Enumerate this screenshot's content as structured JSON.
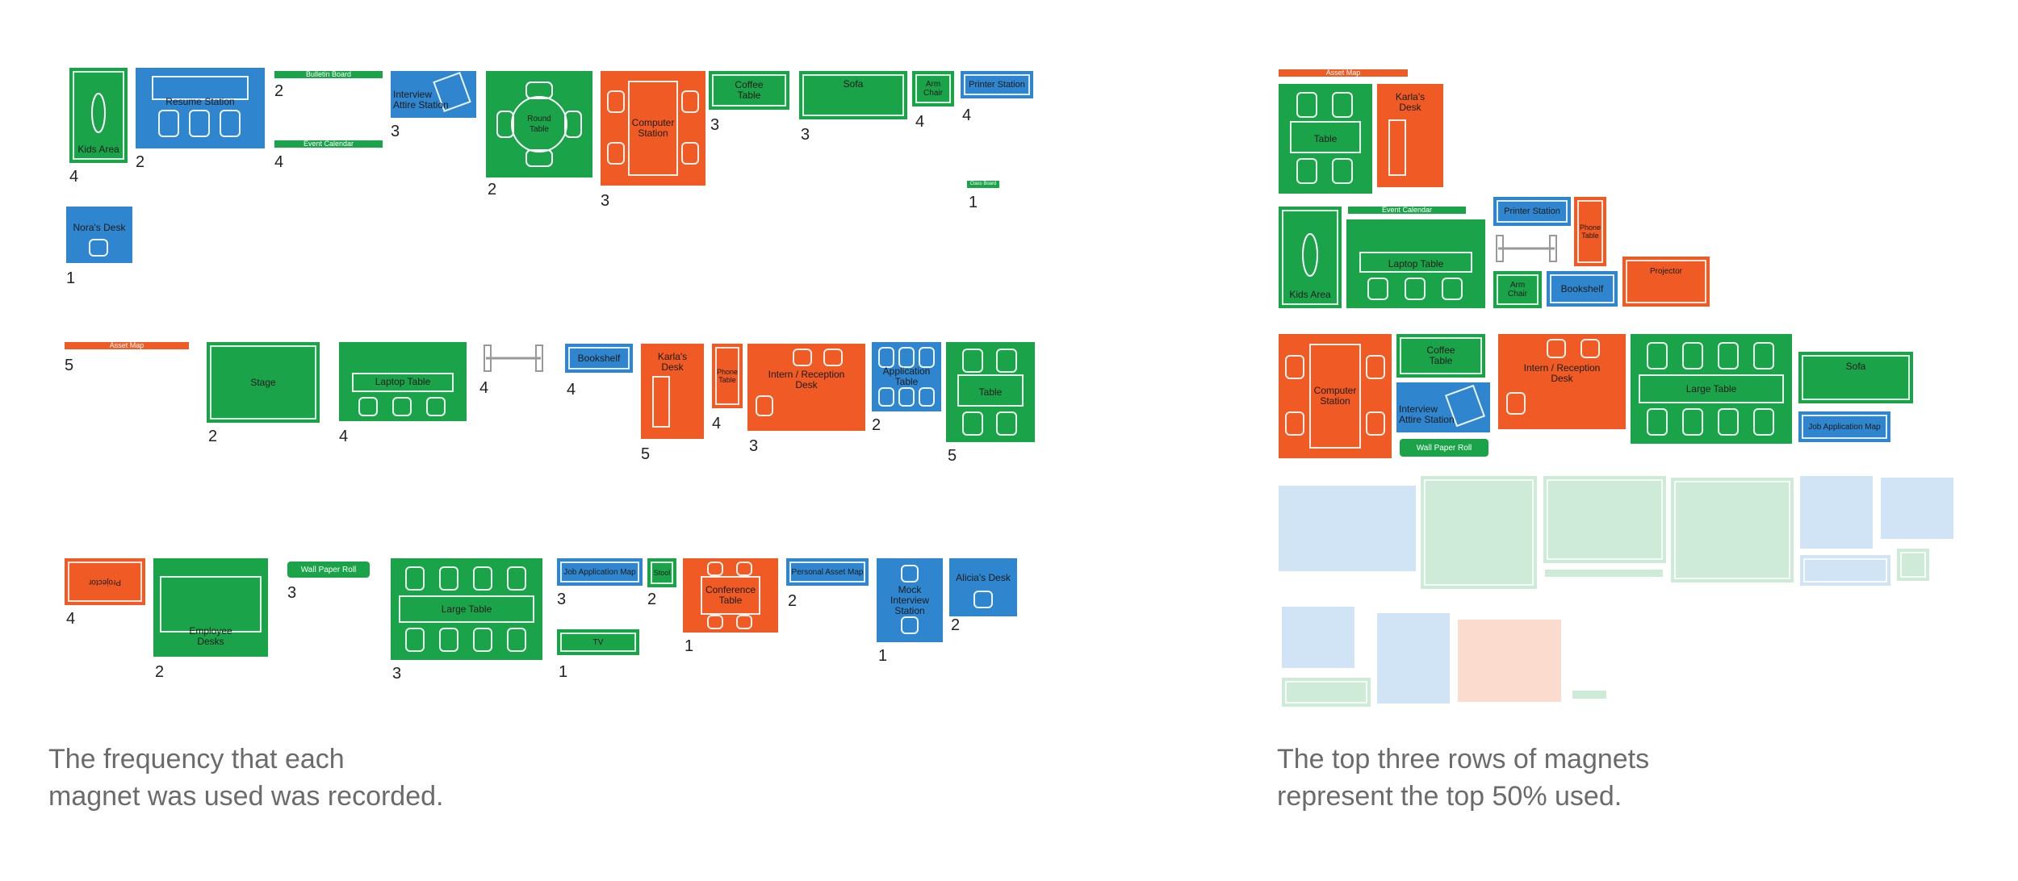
{
  "colors": {
    "green": "#1ba34a",
    "orange": "#f05a24",
    "blue": "#2f86cf",
    "caption": "#6b6b6b"
  },
  "left": {
    "caption": "The frequency that each\nmagnet was used was recorded.",
    "magnets": {
      "kids_area": "Kids Area",
      "resume_station": "Resume Station",
      "bulletin_board": "Bulletin Board",
      "event_calendar": "Event Calendar",
      "interview_attire": "Interview\nAttire Station",
      "round_table": "Round\nTable",
      "computer_station": "Computer\nStation",
      "coffee_table": "Coffee\nTable",
      "sofa": "Sofa",
      "arm_chair": "Arm\nChair",
      "printer_station": "Printer Station",
      "class_board": "Class Board",
      "noras_desk": "Nora's Desk",
      "asset_map": "Asset Map",
      "stage": "Stage",
      "laptop_table": "Laptop Table",
      "bookshelf": "Bookshelf",
      "karlas_desk": "Karla's\nDesk",
      "phone_table": "Phone\nTable",
      "intern_reception": "Intern / Reception\nDesk",
      "application_table": "Application\nTable",
      "table": "Table",
      "projector": "Projector",
      "employee_desks": "Employee\nDesks",
      "wall_paper_roll": "Wall Paper Roll",
      "large_table": "Large Table",
      "job_application_map": "Job Application Map",
      "tv": "TV",
      "stool": "Stool",
      "conference_table": "Conference\nTable",
      "personal_asset_map": "Personal Asset Map",
      "mock_interview": "Mock Interview\nStation",
      "alicias_desk": "Alicia's Desk"
    },
    "counts": {
      "kids_area": "4",
      "resume_station": "2",
      "bulletin_board": "2",
      "event_calendar": "4",
      "interview_attire": "3",
      "round_table": "2",
      "computer_station": "3",
      "coffee_table": "3",
      "sofa": "3",
      "arm_chair": "4",
      "printer_station": "4",
      "class_board": "1",
      "noras_desk": "1",
      "asset_map": "5",
      "stage": "2",
      "laptop_table": "4",
      "dumbbell": "4",
      "bookshelf": "4",
      "karlas_desk": "5",
      "phone_table": "4",
      "intern_reception": "3",
      "application_table": "2",
      "table": "5",
      "projector": "4",
      "employee_desks": "2",
      "wall_paper_roll": "3",
      "large_table": "3",
      "job_application_map": "3",
      "tv": "1",
      "stool": "2",
      "conference_table": "1",
      "personal_asset_map": "2",
      "mock_interview": "1",
      "alicias_desk": "2"
    }
  },
  "right": {
    "caption": "The top three rows of magnets\nrepresent the top 50% used.",
    "magnets": {
      "asset_map": "Asset Map",
      "table": "Table",
      "karlas_desk": "Karla's\nDesk",
      "event_calendar": "Event Calendar",
      "printer_station": "Printer Station",
      "phone_table": "Phone\nTable",
      "kids_area": "Kids Area",
      "laptop_table": "Laptop Table",
      "arm_chair": "Arm\nChair",
      "bookshelf": "Bookshelf",
      "projector": "Projector",
      "computer_station": "Computer\nStation",
      "coffee_table": "Coffee\nTable",
      "intern_reception": "Intern / Reception\nDesk",
      "large_table": "Large Table",
      "sofa": "Sofa",
      "interview_attire": "Interview\nAttire Station",
      "job_application_map": "Job Application Map",
      "wall_paper_roll": "Wall Paper Roll"
    }
  }
}
